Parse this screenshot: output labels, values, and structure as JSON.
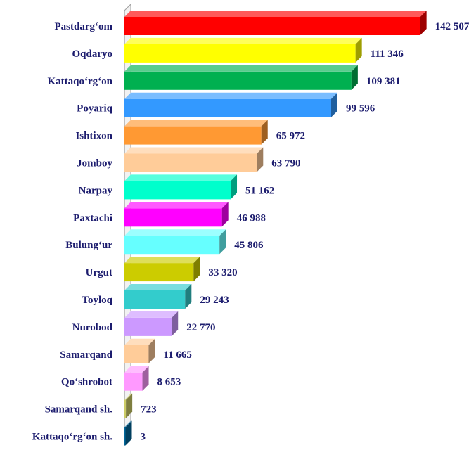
{
  "chart_data": {
    "type": "bar",
    "orientation": "horizontal",
    "style": "3d",
    "grid": false,
    "legend": "none",
    "title": "",
    "xlabel": "",
    "ylabel": "",
    "xlim": [
      0,
      145000
    ],
    "categories": [
      "Pastdarg‘om",
      "Oqdaryo",
      "Kattaqo‘rg‘on",
      "Poyariq",
      "Ishtixon",
      "Jomboy",
      "Narpay",
      "Paxtachi",
      "Bulung‘ur",
      "Urgut",
      "Toyloq",
      "Nurobod",
      "Samarqand",
      "Qo‘shrobot",
      "Samarqand sh.",
      "Kattaqo‘rg‘on sh."
    ],
    "values": [
      142507,
      111346,
      109381,
      99596,
      65972,
      63790,
      51162,
      46988,
      45806,
      33320,
      29243,
      22770,
      11665,
      8653,
      723,
      3
    ],
    "value_labels": [
      "142 507",
      "111 346",
      "109 381",
      "99 596",
      "65 972",
      "63 790",
      "51 162",
      "46 988",
      "45 806",
      "33 320",
      "29 243",
      "22 770",
      "11 665",
      "8 653",
      "723",
      "3"
    ],
    "colors": [
      "#ff0000",
      "#ffff00",
      "#00b050",
      "#3399ff",
      "#ff9933",
      "#ffcc99",
      "#00ffcc",
      "#ff00ff",
      "#66ffff",
      "#cccc00",
      "#33cccc",
      "#cc99ff",
      "#ffcc99",
      "#ff99ff",
      "#cccc66",
      "#006699"
    ]
  }
}
